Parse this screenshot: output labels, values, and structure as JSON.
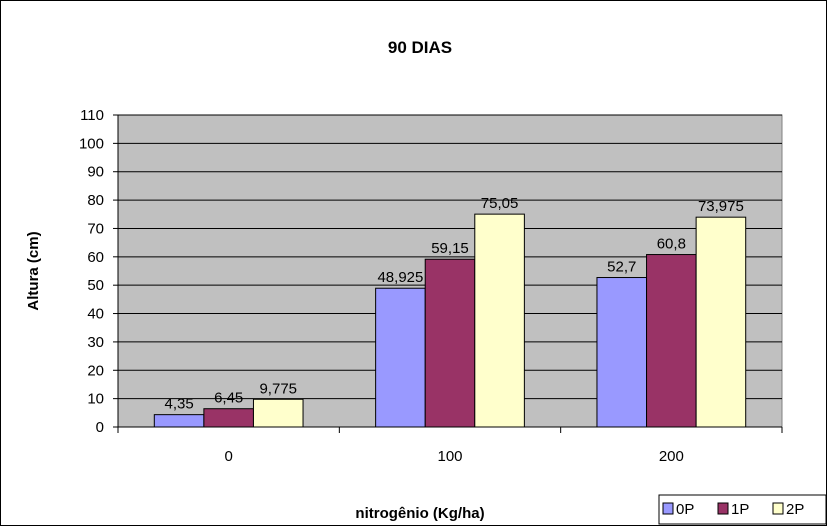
{
  "chart_data": {
    "type": "bar",
    "title": "90 DIAS",
    "xlabel": "nitrogênio (Kg/ha)",
    "ylabel": "Altura (cm)",
    "categories": [
      "0",
      "100",
      "200"
    ],
    "ylim": [
      0,
      110
    ],
    "yticks": [
      "0",
      "10",
      "20",
      "30",
      "40",
      "50",
      "60",
      "70",
      "80",
      "90",
      "100",
      "110"
    ],
    "grid": true,
    "legend_position": "bottom-right",
    "series": [
      {
        "name": "0P",
        "color": "#9999FF",
        "values": [
          4.35,
          48.925,
          52.7
        ],
        "labels": [
          "4,35",
          "48,925",
          "52,7"
        ]
      },
      {
        "name": "1P",
        "color": "#993366",
        "values": [
          6.45,
          59.15,
          60.8
        ],
        "labels": [
          "6,45",
          "59,15",
          "60,8"
        ]
      },
      {
        "name": "2P",
        "color": "#FFFFCC",
        "values": [
          9.775,
          75.05,
          73.975
        ],
        "labels": [
          "9,775",
          "75,05",
          "73,975"
        ]
      }
    ],
    "plot_background": "#C0C0C0"
  }
}
